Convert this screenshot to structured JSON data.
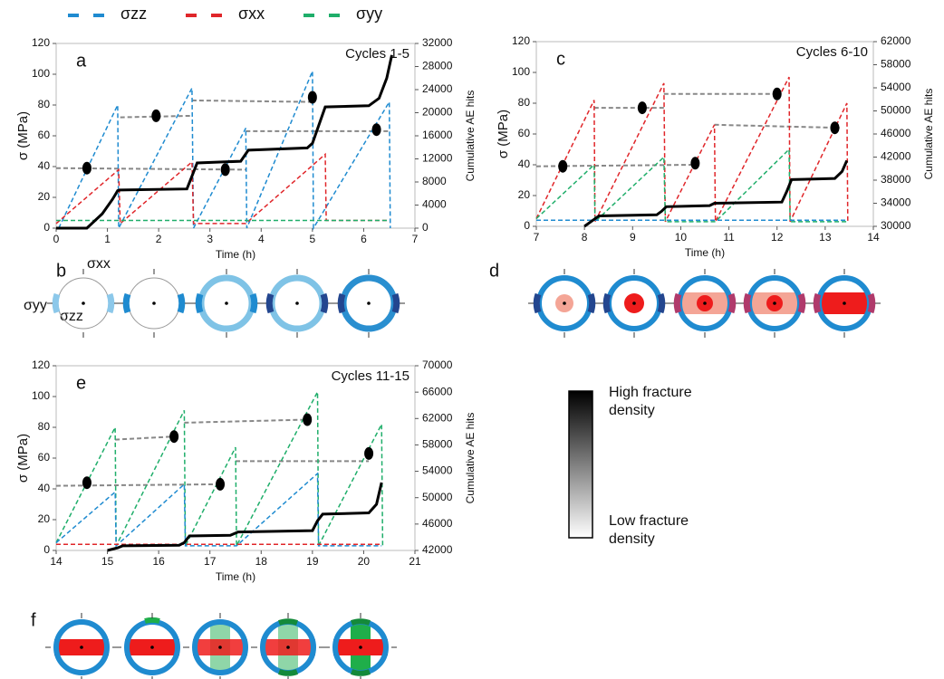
{
  "legend": [
    {
      "name": "σzz",
      "color": "#1f8bd0"
    },
    {
      "name": "σxx",
      "color": "#e0262a"
    },
    {
      "name": "σyy",
      "color": "#1fae6a"
    }
  ],
  "diagrams": {
    "b": "b",
    "d": "d",
    "f": "f",
    "stress_labels": [
      "σxx",
      "σyy",
      "σzz"
    ]
  },
  "colorbar": {
    "high": "High fracture density",
    "low": "Low fracture density"
  },
  "chart_data": [
    {
      "type": "line",
      "panel": "a",
      "title": "Cycles 1-5",
      "xlabel": "Time (h)",
      "ylabel": "σ (MPa)",
      "y2label": "Cumulative AE hits",
      "xlim": [
        0,
        7
      ],
      "xticks": [
        0,
        1,
        2,
        3,
        4,
        5,
        6,
        7
      ],
      "ylim": [
        0,
        120
      ],
      "yticks": [
        0,
        20,
        40,
        60,
        80,
        100,
        120
      ],
      "y2lim": [
        0,
        32000
      ],
      "y2ticks": [
        0,
        4000,
        8000,
        12000,
        16000,
        20000,
        24000,
        28000,
        32000
      ],
      "series": [
        {
          "color": "#1f8bd0",
          "dash": true,
          "x": [
            0.05,
            1.2,
            1.22,
            2.65,
            2.68,
            3.7,
            3.72,
            5.0,
            5.02,
            6.5,
            6.52
          ],
          "values": [
            0,
            80,
            0,
            91,
            0,
            65,
            0,
            102,
            0,
            82,
            0
          ]
        },
        {
          "color": "#e0262a",
          "dash": true,
          "x": [
            0,
            1.22,
            1.25,
            2.65,
            2.68,
            3.7,
            5.25,
            5.27,
            6.5
          ],
          "values": [
            3,
            38,
            3,
            43,
            3,
            3,
            48,
            5,
            5
          ]
        },
        {
          "color": "#1fae6a",
          "dash": true,
          "x": [
            0,
            6.5
          ],
          "values": [
            5,
            5
          ]
        },
        {
          "color": "#000000",
          "dash": false,
          "axis": "y2",
          "x": [
            0,
            0.6,
            0.9,
            1.1,
            1.2,
            1.25,
            2.55,
            2.65,
            2.75,
            3.6,
            3.75,
            4.9,
            5.0,
            5.25,
            6.1,
            6.3,
            6.45,
            6.55
          ],
          "values": [
            0,
            0,
            2500,
            5000,
            6500,
            6600,
            6800,
            9000,
            11300,
            11600,
            13500,
            13900,
            14700,
            21000,
            21200,
            22500,
            26000,
            30000
          ]
        }
      ],
      "guides": {
        "color": "#888888",
        "x": [
          0,
          3.7,
          null,
          1.25,
          2.65,
          null,
          2.65,
          5.0,
          null,
          3.7,
          6.5
        ],
        "values": [
          39,
          38,
          null,
          72,
          73,
          null,
          83,
          82,
          null,
          63,
          63
        ]
      },
      "markers": {
        "x": [
          0.6,
          1.95,
          3.3,
          5.0,
          6.25
        ],
        "y": [
          39,
          73,
          38,
          85,
          64
        ]
      }
    },
    {
      "type": "line",
      "panel": "c",
      "title": "Cycles 6-10",
      "xlabel": "Time (h)",
      "ylabel": "σ (MPa)",
      "y2label": "Cumulative AE hits",
      "xlim": [
        7,
        14
      ],
      "xticks": [
        7,
        8,
        9,
        10,
        11,
        12,
        13,
        14
      ],
      "ylim": [
        0,
        120
      ],
      "yticks": [
        0,
        20,
        40,
        60,
        80,
        100,
        120
      ],
      "y2lim": [
        30000,
        62000
      ],
      "y2ticks": [
        30000,
        34000,
        38000,
        42000,
        46000,
        50000,
        54000,
        58000,
        62000
      ],
      "series": [
        {
          "color": "#e0262a",
          "dash": true,
          "x": [
            7,
            8.2,
            8.22,
            9.65,
            9.68,
            10.7,
            10.72,
            12.25,
            12.27,
            13.45,
            13.47
          ],
          "values": [
            5,
            82,
            3,
            93,
            3,
            66,
            3,
            97,
            3,
            80,
            3
          ]
        },
        {
          "color": "#1fae6a",
          "dash": true,
          "x": [
            7,
            8.2,
            8.22,
            9.65,
            9.68,
            10.7,
            10.72,
            12.25,
            12.27,
            13.45
          ],
          "values": [
            5,
            40,
            3,
            45,
            3,
            3,
            3,
            50,
            3,
            3
          ]
        },
        {
          "color": "#1f8bd0",
          "dash": true,
          "x": [
            7,
            13.45
          ],
          "values": [
            4,
            4
          ]
        },
        {
          "color": "#000000",
          "dash": false,
          "axis": "y2",
          "x": [
            8.0,
            8.2,
            8.3,
            9.5,
            9.6,
            9.7,
            10.6,
            10.7,
            12.1,
            12.2,
            12.3,
            13.2,
            13.35,
            13.45
          ],
          "values": [
            30000,
            31200,
            31800,
            32000,
            32600,
            33400,
            33600,
            34000,
            34200,
            36000,
            38100,
            38300,
            39500,
            41400
          ]
        }
      ],
      "guides": {
        "color": "#888888",
        "x": [
          7,
          10.3,
          null,
          8.2,
          9.65,
          null,
          9.65,
          12.0,
          null,
          10.7,
          13.3
        ],
        "values": [
          39,
          40,
          null,
          77,
          77,
          null,
          86,
          86,
          null,
          66,
          64
        ]
      },
      "markers": {
        "x": [
          7.55,
          9.2,
          10.3,
          12.0,
          13.2
        ],
        "y": [
          39,
          77,
          41,
          86,
          64
        ]
      }
    },
    {
      "type": "line",
      "panel": "e",
      "title": "Cycles 11-15",
      "xlabel": "Time (h)",
      "ylabel": "σ (MPa)",
      "y2label": "Cumulative AE hits",
      "xlim": [
        14,
        21
      ],
      "xticks": [
        14,
        15,
        16,
        17,
        18,
        19,
        20,
        21
      ],
      "ylim": [
        0,
        120
      ],
      "yticks": [
        0,
        20,
        40,
        60,
        80,
        100,
        120
      ],
      "y2lim": [
        42000,
        70000
      ],
      "y2ticks": [
        42000,
        46000,
        50000,
        54000,
        58000,
        62000,
        66000,
        70000
      ],
      "series": [
        {
          "color": "#1fae6a",
          "dash": true,
          "x": [
            14,
            15.15,
            15.17,
            16.5,
            16.52,
            17.5,
            17.52,
            19.1,
            19.12,
            20.35,
            20.37
          ],
          "values": [
            5,
            80,
            3,
            91,
            3,
            67,
            3,
            103,
            3,
            82,
            3
          ]
        },
        {
          "color": "#1f8bd0",
          "dash": true,
          "x": [
            14,
            15.15,
            15.17,
            16.5,
            16.52,
            17.5,
            17.52,
            19.1,
            19.12,
            20.35
          ],
          "values": [
            5,
            38,
            3,
            43,
            3,
            3,
            3,
            50,
            3,
            3
          ]
        },
        {
          "color": "#e0262a",
          "dash": true,
          "x": [
            14,
            20.35
          ],
          "values": [
            4,
            4
          ]
        },
        {
          "color": "#000000",
          "dash": false,
          "axis": "y2",
          "x": [
            15.0,
            15.2,
            15.3,
            16.4,
            16.5,
            16.6,
            17.4,
            17.55,
            19.0,
            19.1,
            19.2,
            20.1,
            20.25,
            20.35
          ],
          "values": [
            42000,
            42400,
            42700,
            42800,
            43200,
            44200,
            44300,
            44800,
            45000,
            46500,
            47500,
            47700,
            49000,
            52300
          ]
        }
      ],
      "guides": {
        "color": "#888888",
        "x": [
          14,
          17.2,
          null,
          15.15,
          16.3,
          null,
          16.5,
          18.9,
          null,
          17.5,
          20.1
        ],
        "values": [
          42,
          43,
          null,
          72,
          74,
          null,
          83,
          85,
          null,
          58,
          58
        ]
      },
      "markers": {
        "x": [
          14.6,
          16.3,
          17.2,
          18.9,
          20.1
        ],
        "y": [
          44,
          74,
          43,
          85,
          63
        ]
      }
    }
  ]
}
